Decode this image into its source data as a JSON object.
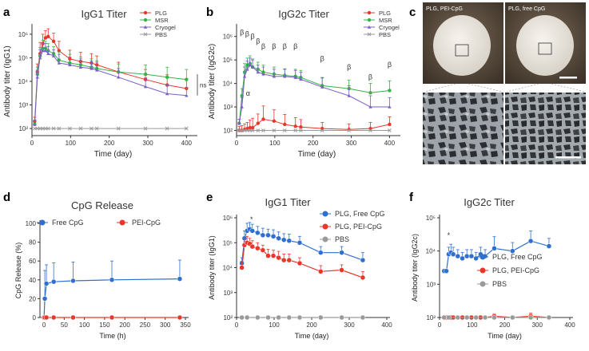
{
  "panel_letters": [
    "a",
    "b",
    "c",
    "d",
    "e",
    "f"
  ],
  "colors": {
    "red": "#e8362a",
    "green": "#35b34a",
    "purple": "#7b5fc7",
    "grey": "#9a9a9a",
    "blue": "#2f6fd0",
    "axis": "#333333"
  },
  "photos": {
    "left_caption": "PLG, PEI-CpG",
    "right_caption": "PLG, free CpG"
  },
  "chart_data": [
    {
      "id": "a",
      "type": "line",
      "title": "IgG1 Titer",
      "xlabel": "Time (day)",
      "ylabel": "Antibody titer (IgG1)",
      "yscale": "log",
      "xlim": [
        0,
        420
      ],
      "ylim": [
        50,
        2000000
      ],
      "xticks": [
        0,
        100,
        200,
        300,
        400
      ],
      "yticks": [
        {
          "v": 100,
          "l": "10²"
        },
        {
          "v": 1000,
          "l": "10³"
        },
        {
          "v": 10000,
          "l": "10⁴"
        },
        {
          "v": 100000,
          "l": "10⁵"
        },
        {
          "v": 1000000,
          "l": "10⁶"
        }
      ],
      "legend": "top-right",
      "annotation": "ns",
      "series": [
        {
          "name": "PLG",
          "color": "#e8362a",
          "marker": "circle",
          "x": [
            7,
            14,
            21,
            28,
            35,
            42,
            56,
            70,
            98,
            126,
            154,
            168,
            224,
            294,
            350,
            400
          ],
          "y": [
            200,
            25000,
            150000,
            400000,
            700000,
            800000,
            500000,
            200000,
            90000,
            70000,
            60000,
            50000,
            25000,
            12000,
            7000,
            5000
          ],
          "err": [
            100,
            30000,
            300000,
            600000,
            700000,
            900000,
            600000,
            300000,
            120000,
            100000,
            90000,
            70000,
            40000,
            20000,
            12000,
            8000
          ]
        },
        {
          "name": "MSR",
          "color": "#35b34a",
          "marker": "circle",
          "x": [
            7,
            14,
            21,
            28,
            35,
            42,
            56,
            70,
            98,
            126,
            154,
            168,
            224,
            294,
            350,
            400
          ],
          "y": [
            150,
            20000,
            120000,
            250000,
            250000,
            200000,
            150000,
            80000,
            60000,
            50000,
            40000,
            35000,
            25000,
            20000,
            15000,
            12000
          ],
          "err": [
            80,
            20000,
            150000,
            300000,
            250000,
            200000,
            150000,
            100000,
            80000,
            60000,
            50000,
            40000,
            30000,
            30000,
            25000,
            20000
          ]
        },
        {
          "name": "Cryogel",
          "color": "#7b5fc7",
          "marker": "triangle",
          "x": [
            7,
            14,
            21,
            28,
            35,
            42,
            56,
            70,
            98,
            126,
            154,
            168,
            224,
            294,
            350,
            400
          ],
          "y": [
            150,
            15000,
            100000,
            200000,
            200000,
            150000,
            120000,
            60000,
            50000,
            40000,
            35000,
            30000,
            15000,
            6000,
            3000,
            2500
          ],
          "err": [
            80,
            15000,
            120000,
            200000,
            200000,
            150000,
            100000,
            80000,
            60000,
            50000,
            40000,
            35000,
            20000,
            8000,
            4000,
            3000
          ]
        },
        {
          "name": "PBS",
          "color": "#9a9a9a",
          "marker": "x",
          "x": [
            7,
            14,
            21,
            28,
            35,
            42,
            56,
            70,
            98,
            126,
            154,
            168,
            224,
            294,
            350,
            400
          ],
          "y": [
            100,
            100,
            100,
            100,
            100,
            100,
            100,
            100,
            100,
            100,
            100,
            100,
            100,
            100,
            100,
            100
          ]
        }
      ]
    },
    {
      "id": "b",
      "type": "line",
      "title": "IgG2c Titer",
      "xlabel": "Time (day)",
      "ylabel": "Antibody titer (IgG2c)",
      "yscale": "log",
      "xlim": [
        0,
        420
      ],
      "ylim": [
        60,
        2500000
      ],
      "xticks": [
        0,
        100,
        200,
        300,
        400
      ],
      "yticks": [
        {
          "v": 100,
          "l": "10²"
        },
        {
          "v": 1000,
          "l": "10³"
        },
        {
          "v": 10000,
          "l": "10⁴"
        },
        {
          "v": 100000,
          "l": "10⁵"
        },
        {
          "v": 1000000,
          "l": "10⁶"
        }
      ],
      "legend": "top-right",
      "markers": [
        {
          "x": 14,
          "y": 1200000,
          "t": "β"
        },
        {
          "x": 28,
          "y": 1000000,
          "t": "β"
        },
        {
          "x": 42,
          "y": 800000,
          "t": "β"
        },
        {
          "x": 56,
          "y": 500000,
          "t": "β"
        },
        {
          "x": 70,
          "y": 300000,
          "t": "β"
        },
        {
          "x": 98,
          "y": 300000,
          "t": "β"
        },
        {
          "x": 126,
          "y": 300000,
          "t": "β"
        },
        {
          "x": 154,
          "y": 300000,
          "t": "β"
        },
        {
          "x": 224,
          "y": 90000,
          "t": "β"
        },
        {
          "x": 294,
          "y": 40000,
          "t": "β"
        },
        {
          "x": 350,
          "y": 15000,
          "t": "β"
        },
        {
          "x": 400,
          "y": 50000,
          "t": "β"
        },
        {
          "x": 30,
          "y": 3000,
          "t": "α"
        }
      ],
      "series": [
        {
          "name": "PLG",
          "color": "#e8362a",
          "marker": "circle",
          "x": [
            7,
            14,
            21,
            28,
            35,
            42,
            56,
            70,
            98,
            126,
            154,
            168,
            224,
            294,
            350,
            400
          ],
          "y": [
            100,
            100,
            110,
            120,
            130,
            130,
            200,
            300,
            250,
            180,
            150,
            140,
            120,
            110,
            120,
            180
          ],
          "err": [
            50,
            60,
            80,
            100,
            150,
            200,
            300,
            800,
            500,
            300,
            200,
            150,
            100,
            80,
            100,
            200
          ]
        },
        {
          "name": "MSR",
          "color": "#35b34a",
          "marker": "circle",
          "x": [
            7,
            14,
            21,
            28,
            35,
            42,
            56,
            70,
            98,
            126,
            154,
            168,
            224,
            294,
            350,
            400
          ],
          "y": [
            200,
            3000,
            30000,
            60000,
            70000,
            50000,
            40000,
            30000,
            25000,
            22000,
            20000,
            18000,
            8000,
            6000,
            4000,
            5000
          ],
          "err": [
            100,
            3000,
            40000,
            60000,
            80000,
            60000,
            40000,
            30000,
            25000,
            20000,
            20000,
            18000,
            10000,
            8000,
            6000,
            8000
          ]
        },
        {
          "name": "Cryogel",
          "color": "#7b5fc7",
          "marker": "triangle",
          "x": [
            7,
            14,
            21,
            28,
            35,
            42,
            56,
            70,
            98,
            126,
            154,
            168,
            224,
            294,
            350,
            400
          ],
          "y": [
            200,
            1000,
            20000,
            40000,
            60000,
            50000,
            30000,
            25000,
            20000,
            20000,
            18000,
            15000,
            7000,
            3000,
            1000,
            1000
          ],
          "err": [
            100,
            1500,
            30000,
            50000,
            60000,
            50000,
            30000,
            25000,
            20000,
            20000,
            18000,
            15000,
            10000,
            5000,
            2000,
            1500
          ]
        },
        {
          "name": "PBS",
          "color": "#9a9a9a",
          "marker": "x",
          "x": [
            7,
            14,
            21,
            28,
            35,
            42,
            56,
            70,
            98,
            126,
            154,
            168,
            224,
            294,
            350,
            400
          ],
          "y": [
            100,
            100,
            100,
            100,
            100,
            100,
            100,
            100,
            100,
            100,
            100,
            100,
            100,
            100,
            100,
            100
          ]
        }
      ]
    },
    {
      "id": "d",
      "type": "line",
      "title": "CpG Release",
      "xlabel": "Time (h)",
      "ylabel": "CpG Release (%)",
      "yscale": "linear",
      "xlim": [
        -10,
        350
      ],
      "ylim": [
        0,
        100
      ],
      "xticks": [
        0,
        50,
        100,
        150,
        200,
        250,
        300,
        350
      ],
      "yticks": [
        {
          "v": 0,
          "l": "0"
        },
        {
          "v": 20,
          "l": "20"
        },
        {
          "v": 40,
          "l": "40"
        },
        {
          "v": 60,
          "l": "60"
        },
        {
          "v": 80,
          "l": "80"
        },
        {
          "v": 100,
          "l": "100"
        }
      ],
      "legend": "top",
      "series": [
        {
          "name": "Free CpG",
          "color": "#2f6fd0",
          "marker": "circle",
          "x": [
            0,
            2,
            6,
            24,
            72,
            168,
            336
          ],
          "y": [
            0,
            20,
            36,
            38,
            39,
            40,
            41
          ],
          "err": [
            0,
            30,
            20,
            20,
            20,
            20,
            20
          ]
        },
        {
          "name": "PEI-CpG",
          "color": "#e8362a",
          "marker": "circle",
          "x": [
            0,
            2,
            6,
            24,
            72,
            168,
            336
          ],
          "y": [
            0,
            0,
            0,
            0,
            0,
            0,
            0
          ]
        }
      ]
    },
    {
      "id": "e",
      "type": "line",
      "title": "IgG1 Titer",
      "xlabel": "Time (day)",
      "ylabel": "Antibody titer (IgG1)",
      "yscale": "log",
      "xlim": [
        0,
        400
      ],
      "ylim": [
        100,
        1000000
      ],
      "xticks": [
        0,
        100,
        200,
        300,
        400
      ],
      "yticks": [
        {
          "v": 100,
          "l": "10²"
        },
        {
          "v": 1000,
          "l": "10³"
        },
        {
          "v": 10000,
          "l": "10⁴"
        },
        {
          "v": 100000,
          "l": "10⁵"
        },
        {
          "v": 1000000,
          "l": "10⁶"
        }
      ],
      "legend": "top-right",
      "markers": [
        {
          "x": 40,
          "y": 700000,
          "t": "*"
        }
      ],
      "series": [
        {
          "name": "PLG, Free CpG",
          "color": "#2f6fd0",
          "marker": "circle",
          "x": [
            14,
            21,
            28,
            35,
            42,
            56,
            70,
            84,
            98,
            112,
            126,
            140,
            168,
            224,
            280,
            336
          ],
          "y": [
            15000,
            150000,
            300000,
            350000,
            300000,
            250000,
            200000,
            200000,
            180000,
            150000,
            130000,
            120000,
            100000,
            40000,
            40000,
            20000
          ],
          "err": [
            10000,
            150000,
            300000,
            300000,
            250000,
            200000,
            180000,
            150000,
            150000,
            120000,
            100000,
            100000,
            80000,
            30000,
            30000,
            20000
          ]
        },
        {
          "name": "PLG, PEI-CpG",
          "color": "#e8362a",
          "marker": "circle",
          "x": [
            14,
            21,
            28,
            35,
            42,
            56,
            70,
            84,
            98,
            112,
            126,
            140,
            168,
            224,
            280,
            336
          ],
          "y": [
            10000,
            80000,
            100000,
            90000,
            70000,
            60000,
            50000,
            30000,
            30000,
            25000,
            20000,
            20000,
            15000,
            7000,
            8000,
            4000
          ],
          "err": [
            8000,
            60000,
            80000,
            60000,
            50000,
            40000,
            30000,
            25000,
            20000,
            20000,
            15000,
            15000,
            10000,
            5000,
            5000,
            3000
          ]
        },
        {
          "name": "PBS",
          "color": "#9a9a9a",
          "marker": "circle",
          "x": [
            14,
            28,
            56,
            84,
            112,
            140,
            168,
            224,
            280,
            336
          ],
          "y": [
            100,
            100,
            100,
            100,
            100,
            100,
            100,
            100,
            100,
            100
          ]
        }
      ]
    },
    {
      "id": "f",
      "type": "line",
      "title": "IgG2c Titer",
      "xlabel": "Time (day)",
      "ylabel": "Antibody titer (IgG2c)",
      "yscale": "log",
      "xlim": [
        0,
        400
      ],
      "ylim": [
        100,
        100000
      ],
      "xticks": [
        0,
        100,
        200,
        300,
        400
      ],
      "yticks": [
        {
          "v": 100,
          "l": "10²"
        },
        {
          "v": 1000,
          "l": "10³"
        },
        {
          "v": 10000,
          "l": "10⁴"
        },
        {
          "v": 100000,
          "l": "10⁵"
        }
      ],
      "legend": "center-right",
      "markers": [
        {
          "x": 28,
          "y": 25000,
          "t": "*"
        }
      ],
      "series": [
        {
          "name": "PLG, Free CpG",
          "color": "#2f6fd0",
          "marker": "circle",
          "x": [
            14,
            21,
            28,
            35,
            42,
            56,
            70,
            84,
            98,
            112,
            126,
            140,
            168,
            224,
            280,
            336
          ],
          "y": [
            2500,
            2500,
            8000,
            9000,
            8000,
            7000,
            6000,
            7000,
            7000,
            6000,
            8000,
            7000,
            12000,
            10000,
            20000,
            14000
          ],
          "err": [
            0,
            0,
            5000,
            7000,
            5000,
            4000,
            3000,
            4000,
            4000,
            3000,
            5000,
            4000,
            15000,
            8000,
            20000,
            10000
          ]
        },
        {
          "name": "PLG, PEI-CpG",
          "color": "#e8362a",
          "marker": "circle",
          "x": [
            14,
            21,
            28,
            35,
            42,
            56,
            70,
            84,
            98,
            112,
            126,
            140,
            168,
            224,
            280,
            336
          ],
          "y": [
            100,
            100,
            100,
            100,
            100,
            100,
            100,
            100,
            100,
            100,
            100,
            100,
            110,
            100,
            110,
            100
          ],
          "err": [
            0,
            0,
            0,
            0,
            0,
            0,
            0,
            0,
            0,
            0,
            0,
            0,
            20,
            0,
            25,
            0
          ]
        },
        {
          "name": "PBS",
          "color": "#9a9a9a",
          "marker": "circle",
          "x": [
            14,
            28,
            56,
            84,
            112,
            140,
            168,
            224,
            280,
            336
          ],
          "y": [
            100,
            100,
            100,
            100,
            100,
            100,
            100,
            100,
            100,
            100
          ]
        }
      ]
    }
  ]
}
